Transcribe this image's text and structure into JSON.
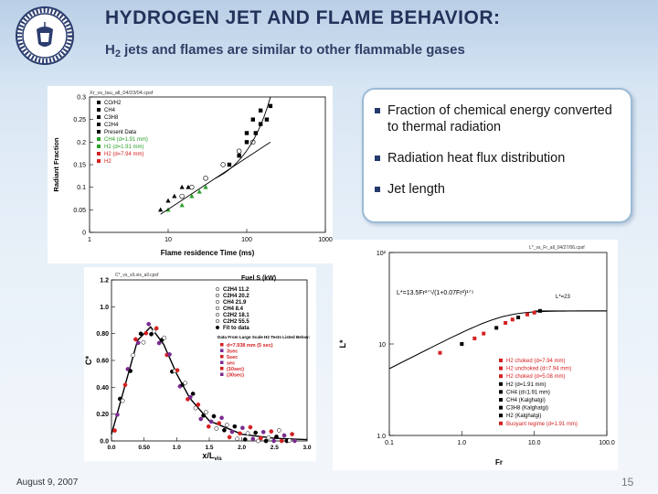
{
  "slide": {
    "title": "HYDROGEN JET AND FLAME BEHAVIOR:",
    "subtitle_pre": "H",
    "subtitle_sub": "2",
    "subtitle_post": " jets and flames are similar to other flammable gases",
    "footer_date": "August 9, 2007",
    "page_number": "15",
    "bullets": [
      "Fraction of chemical energy converted to thermal radiation",
      "Radiation heat flux distribution",
      "Jet length"
    ],
    "colors": {
      "title": "#23325a",
      "background_top": "#b9cfe6",
      "bullet_border": "#9bbbd6",
      "marker_red": "#d42020",
      "marker_purple": "#7a2a90",
      "marker_green": "#2aa02a"
    }
  },
  "chart_data": [
    {
      "type": "scatter",
      "file_label": "Xr_vs_tau_all_04/23/04.cpsf",
      "xlabel": "Flame residence Time (ms)",
      "ylabel": "Radiant Fraction",
      "x_scale": "log",
      "xlim": [
        1,
        1000
      ],
      "ylim": [
        0,
        0.3
      ],
      "x_ticks": [
        "1",
        "10",
        "100",
        "1000"
      ],
      "y_ticks": [
        "0",
        "0.05",
        "0.1",
        "0.15",
        "0.2",
        "0.25",
        "0.3"
      ],
      "legend": [
        "CO/H2",
        "CH4",
        "C3H8",
        "C2H4",
        "Present Data",
        "CH4 (d=1.91 mm)",
        "H2 (d=1.91 mm)",
        "H2 (d=7.94 mm)",
        "H2"
      ],
      "series": [
        {
          "name": "CO/H2",
          "x": [
            8,
            10,
            12,
            15,
            18
          ],
          "y": [
            0.05,
            0.07,
            0.08,
            0.1,
            0.1
          ]
        },
        {
          "name": "CH4",
          "x": [
            15,
            20,
            30,
            50,
            80,
            120
          ],
          "y": [
            0.08,
            0.1,
            0.12,
            0.15,
            0.18,
            0.2
          ]
        },
        {
          "name": "C3H8",
          "x": [
            60,
            80,
            100,
            130,
            150,
            180
          ],
          "y": [
            0.15,
            0.17,
            0.2,
            0.22,
            0.24,
            0.25
          ]
        },
        {
          "name": "C2H4",
          "x": [
            100,
            120,
            150,
            200
          ],
          "y": [
            0.22,
            0.25,
            0.27,
            0.28
          ]
        },
        {
          "name": "H2",
          "x": [
            10,
            15,
            20,
            25,
            30
          ],
          "y": [
            0.05,
            0.06,
            0.08,
            0.09,
            0.1
          ]
        }
      ]
    },
    {
      "type": "scatter",
      "file_label": "C*_vs_x/Lvis_all.cpsf",
      "xlabel": "x/L",
      "xlabel_sub": "vis",
      "ylabel": "C*",
      "xlim": [
        0,
        3.0
      ],
      "ylim": [
        0,
        1.2
      ],
      "x_ticks": [
        "0.0",
        "0.50",
        "1.0",
        "1.5",
        "2.0",
        "2.5",
        "3.0"
      ],
      "y_ticks": [
        "0.0",
        "0.20",
        "0.40",
        "0.60",
        "0.80",
        "1.0",
        "1.2"
      ],
      "legend_header": "Fuel  S (kW)",
      "legend": [
        "C2H4  11.2",
        "C2H4  20.2",
        "CH4  21.9",
        "CH4  8.4",
        "C2H2  18.1",
        "C2H2  55.5",
        "Fit to data"
      ],
      "legend_note": "Data From Large Scale H2 Tests Listed Below:",
      "legend_tests": [
        "d=7.938 mm (5 sec)",
        "3sec",
        "5sec",
        "sec",
        "(10sec)",
        "(30sec)"
      ],
      "fit_curve": {
        "x": [
          0,
          0.2,
          0.4,
          0.6,
          0.8,
          1.0,
          1.2,
          1.5,
          2.0,
          2.5,
          3.0
        ],
        "y": [
          0.05,
          0.4,
          0.75,
          0.85,
          0.72,
          0.5,
          0.32,
          0.15,
          0.05,
          0.02,
          0.01
        ]
      }
    },
    {
      "type": "scatter",
      "file_label": "L*_vs_Fr_all_04/27/06.cpsf",
      "xlabel": "Fr",
      "ylabel": "L*",
      "x_scale": "log",
      "y_scale": "log",
      "xlim": [
        0.1,
        100
      ],
      "ylim": [
        1,
        100
      ],
      "x_ticks": [
        "0.1",
        "1.0",
        "10.0",
        "100.0"
      ],
      "y_ticks": [
        "1.0",
        "10",
        "10²"
      ],
      "equation": "L*=13.5Fr²ᐟ⁵/(1+0.07Fr²)¹ᐟ⁵",
      "annotation": "L*=23",
      "legend": [
        "H2 choked (d=7.94 mm)",
        "H2 unchoked (d=7.94 mm)",
        "H2 choked (d=5.08 mm)",
        "H2 (d=1.91 mm)",
        "CH4 (d=1.91 mm)",
        "CH4 (Kalghatgi)",
        "C3H8 (Kalghatgi)",
        "H2 (Kalghatgi)",
        "Buoyant regime (d=1.91 mm)"
      ],
      "series": [
        {
          "name": "data",
          "x": [
            0.5,
            1.0,
            1.5,
            2,
            3,
            4,
            5,
            6,
            8,
            10,
            12
          ],
          "y": [
            8,
            10,
            11.5,
            13,
            15,
            17,
            18.5,
            19.5,
            21,
            22,
            23
          ]
        }
      ]
    }
  ]
}
